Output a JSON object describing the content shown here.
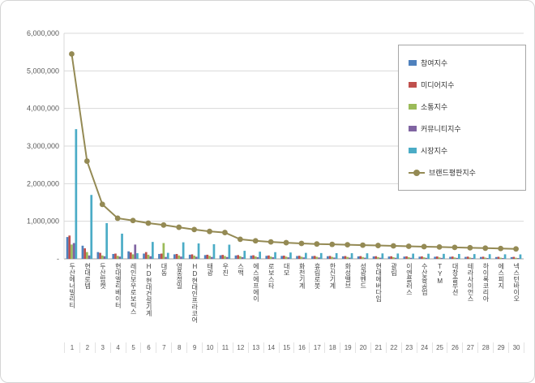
{
  "chart_data": {
    "type": "bar",
    "subtype": "grouped-bar-with-line",
    "categories": [
      "두산에너빌리티",
      "현대로템",
      "두산밥캣",
      "현대엘리베이터",
      "레인보우로보틱스",
      "HD현대건설기계",
      "대동",
      "영풍정밀",
      "HD현대인프라코어",
      "태광",
      "우진",
      "스맥",
      "에스에프에이",
      "로보스타",
      "대모",
      "화천기계",
      "휴림로봇",
      "한신기계",
      "화성밸브",
      "성광벤드",
      "현대에버다임",
      "광림",
      "이엔플러스",
      "수산중공업",
      "TYM",
      "대창솔루션",
      "테라사이언스",
      "하이록코리아",
      "에스피지",
      "넥스턴바이오"
    ],
    "rank_labels": [
      "1",
      "2",
      "3",
      "4",
      "5",
      "6",
      "7",
      "8",
      "9",
      "10",
      "11",
      "12",
      "13",
      "14",
      "15",
      "16",
      "17",
      "18",
      "19",
      "20",
      "21",
      "22",
      "23",
      "24",
      "25",
      "26",
      "27",
      "28",
      "29",
      "30"
    ],
    "series": [
      {
        "name": "참여지수",
        "type": "bar",
        "color": "#4F81BD",
        "values": [
          580000,
          350000,
          180000,
          130000,
          200000,
          140000,
          130000,
          120000,
          110000,
          100000,
          95000,
          90000,
          85000,
          80000,
          78000,
          75000,
          72000,
          70000,
          68000,
          66000,
          64000,
          62000,
          60000,
          58000,
          56000,
          54000,
          52000,
          50000,
          48000,
          46000
        ]
      },
      {
        "name": "미디어지수",
        "type": "bar",
        "color": "#C0504D",
        "values": [
          620000,
          280000,
          160000,
          140000,
          170000,
          180000,
          140000,
          130000,
          120000,
          110000,
          105000,
          100000,
          95000,
          90000,
          85000,
          82000,
          79000,
          77000,
          75000,
          73000,
          71000,
          69000,
          67000,
          65000,
          63000,
          61000,
          59000,
          57000,
          55000,
          53000
        ]
      },
      {
        "name": "소통지수",
        "type": "bar",
        "color": "#9BBB59",
        "values": [
          380000,
          180000,
          90000,
          80000,
          120000,
          110000,
          420000,
          90000,
          85000,
          80000,
          75000,
          70000,
          65000,
          60000,
          58000,
          56000,
          54000,
          52000,
          50000,
          48000,
          46000,
          44000,
          42000,
          40000,
          38000,
          36000,
          34000,
          32000,
          30000,
          28000
        ]
      },
      {
        "name": "커뮤니티지수",
        "type": "bar",
        "color": "#8064A2",
        "values": [
          420000,
          90000,
          70000,
          60000,
          380000,
          70000,
          50000,
          60000,
          55000,
          50000,
          48000,
          46000,
          44000,
          42000,
          40000,
          38000,
          36000,
          34000,
          32000,
          30000,
          29000,
          28000,
          27000,
          26000,
          25000,
          24000,
          23000,
          22000,
          21000,
          20000
        ]
      },
      {
        "name": "시장지수",
        "type": "bar",
        "color": "#4BACC6",
        "values": [
          3450000,
          1700000,
          950000,
          670000,
          150000,
          450000,
          160000,
          440000,
          410000,
          390000,
          377000,
          214000,
          191000,
          178000,
          169000,
          159000,
          154000,
          152000,
          150000,
          148000,
          145000,
          142000,
          139000,
          136000,
          133000,
          130000,
          127000,
          124000,
          121000,
          118000
        ]
      },
      {
        "name": "브랜드평판지수",
        "type": "line",
        "color": "#948A54",
        "values": [
          5450000,
          2600000,
          1450000,
          1080000,
          1020000,
          950000,
          900000,
          840000,
          780000,
          730000,
          700000,
          520000,
          480000,
          450000,
          430000,
          410000,
          395000,
          385000,
          375000,
          365000,
          355000,
          345000,
          335000,
          325000,
          315000,
          305000,
          295000,
          285000,
          275000,
          265000
        ]
      }
    ],
    "ylim": [
      0,
      6000000
    ],
    "yticks": [
      "-",
      "1,000,000",
      "2,000,000",
      "3,000,000",
      "4,000,000",
      "5,000,000",
      "6,000,000"
    ],
    "grid": true,
    "legend_position": "right-top"
  }
}
